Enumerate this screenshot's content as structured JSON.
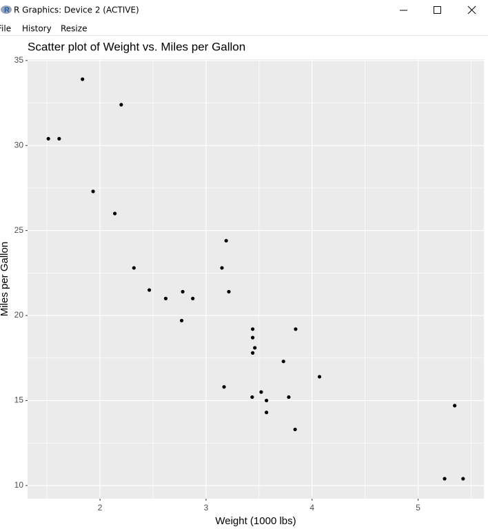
{
  "window": {
    "title": "R Graphics: Device 2 (ACTIVE)",
    "menu": [
      "File",
      "History",
      "Resize"
    ]
  },
  "chart_data": {
    "type": "scatter",
    "title": "Scatter plot of Weight vs. Miles per Gallon",
    "x_label": "Weight (1000 lbs)",
    "y_label": "Miles per Gallon",
    "x": [
      2.62,
      2.875,
      2.32,
      3.215,
      3.44,
      3.46,
      3.57,
      3.19,
      3.15,
      3.44,
      3.44,
      4.07,
      3.73,
      3.78,
      5.25,
      5.424,
      5.345,
      2.2,
      1.615,
      1.835,
      2.465,
      3.52,
      3.435,
      3.84,
      3.845,
      1.935,
      2.14,
      1.513,
      3.17,
      2.77,
      3.57,
      2.78
    ],
    "values": [
      21.0,
      21.0,
      22.8,
      21.4,
      18.7,
      18.1,
      14.3,
      24.4,
      22.8,
      19.2,
      17.8,
      16.4,
      17.3,
      15.2,
      10.4,
      10.4,
      14.7,
      32.4,
      30.4,
      33.9,
      21.5,
      15.5,
      15.2,
      13.3,
      19.2,
      27.3,
      26.0,
      30.4,
      15.8,
      19.7,
      15.0,
      21.4
    ],
    "color": "#000000",
    "xlim": [
      1.317,
      5.62
    ],
    "ylim": [
      9.225,
      35.075
    ],
    "xticks": [
      2,
      3,
      4,
      5
    ],
    "yticks": [
      10,
      15,
      20,
      25,
      30,
      35
    ],
    "x_minor_grid": [
      1.5,
      2.5,
      3.5,
      4.5,
      5.5
    ],
    "y_minor_grid": [
      12.5,
      17.5,
      22.5,
      27.5,
      32.5
    ],
    "grid": true,
    "panel_color": "#ebebeb",
    "grid_color": "#ffffff"
  }
}
